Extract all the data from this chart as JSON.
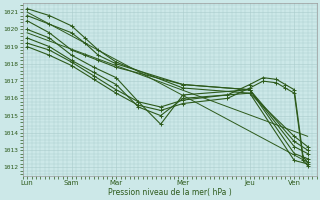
{
  "bg_color": "#cce8e8",
  "grid_color": "#aacccc",
  "line_color": "#2d5a1b",
  "xlabel": "Pression niveau de la mer( hPa )",
  "ylim": [
    1011.5,
    1021.5
  ],
  "yticks": [
    1012,
    1013,
    1014,
    1015,
    1016,
    1017,
    1018,
    1019,
    1020,
    1021
  ],
  "xtick_labels": [
    "Lun",
    "Sam",
    "Mar",
    "Mer",
    "Jeu",
    "Ven"
  ],
  "xtick_positions": [
    0.0,
    1.0,
    2.0,
    3.5,
    5.0,
    6.0
  ],
  "xlim": [
    -0.1,
    6.5
  ],
  "series": [
    {
      "x": [
        0.0,
        0.5,
        1.0,
        1.3,
        1.6,
        2.0,
        3.5,
        5.0,
        6.0,
        6.3
      ],
      "y": [
        1021.2,
        1020.8,
        1020.2,
        1019.5,
        1018.8,
        1018.1,
        1016.6,
        1016.3,
        1012.4,
        1012.2
      ],
      "marker": true,
      "lw": 0.8
    },
    {
      "x": [
        0.0,
        0.5,
        1.0,
        1.3,
        1.6,
        2.0,
        3.5,
        5.0,
        6.0,
        6.3
      ],
      "y": [
        1020.8,
        1020.3,
        1019.8,
        1019.2,
        1018.5,
        1018.0,
        1016.8,
        1016.5,
        1012.8,
        1012.5
      ],
      "marker": true,
      "lw": 0.8
    },
    {
      "x": [
        0.0,
        0.5,
        1.0,
        1.3,
        1.6,
        2.0,
        3.5,
        5.0,
        6.0,
        6.3
      ],
      "y": [
        1020.5,
        1019.8,
        1018.8,
        1018.5,
        1018.2,
        1017.8,
        1016.8,
        1016.5,
        1013.2,
        1012.8
      ],
      "marker": true,
      "lw": 0.8
    },
    {
      "x": [
        0.0,
        0.5,
        1.0,
        1.5,
        2.0,
        2.5,
        3.0,
        3.5,
        5.0,
        6.0,
        6.3
      ],
      "y": [
        1020.0,
        1019.5,
        1018.5,
        1017.8,
        1017.2,
        1015.8,
        1014.5,
        1016.2,
        1016.5,
        1013.5,
        1013.0
      ],
      "marker": true,
      "lw": 0.8
    },
    {
      "x": [
        0.0,
        0.5,
        1.0,
        1.5,
        2.0,
        2.5,
        3.0,
        3.5,
        5.0,
        6.0,
        6.3
      ],
      "y": [
        1019.5,
        1019.0,
        1018.2,
        1017.5,
        1016.8,
        1015.5,
        1015.0,
        1016.0,
        1016.3,
        1013.8,
        1013.2
      ],
      "marker": true,
      "lw": 0.8
    },
    {
      "x": [
        0.0,
        0.5,
        1.0,
        1.5,
        2.0,
        2.5,
        3.0,
        3.5,
        4.5,
        5.0,
        5.3,
        5.6,
        5.8,
        6.0,
        6.2,
        6.3
      ],
      "y": [
        1019.2,
        1018.8,
        1018.1,
        1017.3,
        1016.5,
        1015.8,
        1015.5,
        1015.9,
        1016.2,
        1016.8,
        1017.2,
        1017.1,
        1016.8,
        1016.5,
        1012.6,
        1012.3
      ],
      "marker": true,
      "lw": 0.8
    },
    {
      "x": [
        0.0,
        0.5,
        1.0,
        1.5,
        2.0,
        2.5,
        3.0,
        3.5,
        4.5,
        5.0,
        5.3,
        5.6,
        5.8,
        6.0,
        6.2,
        6.3
      ],
      "y": [
        1019.0,
        1018.5,
        1017.9,
        1017.1,
        1016.3,
        1015.6,
        1015.3,
        1015.7,
        1016.0,
        1016.6,
        1017.0,
        1016.9,
        1016.6,
        1016.3,
        1012.4,
        1012.1
      ],
      "marker": true,
      "lw": 0.8
    },
    {
      "x": [
        0.0,
        6.3
      ],
      "y": [
        1021.0,
        1012.3
      ],
      "marker": false,
      "lw": 0.7
    },
    {
      "x": [
        0.0,
        6.3
      ],
      "y": [
        1019.8,
        1013.8
      ],
      "marker": false,
      "lw": 0.7
    }
  ]
}
